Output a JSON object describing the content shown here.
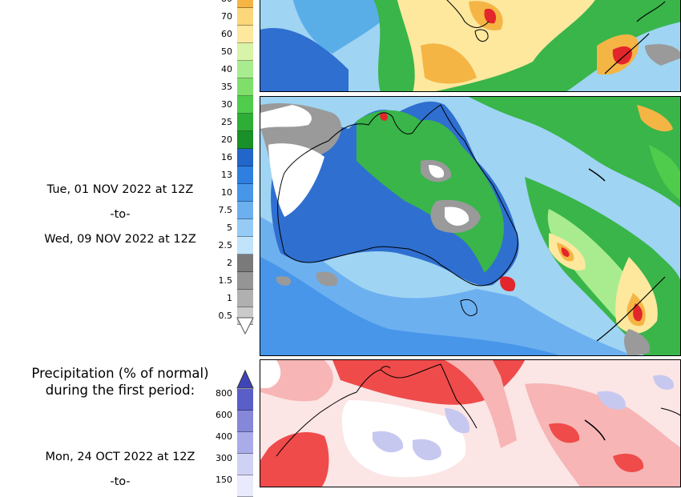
{
  "panel2": {
    "period_start": "Tue, 01 NOV 2022 at 12Z",
    "period_sep": "-to-",
    "period_end": "Wed, 09 NOV 2022 at 12Z"
  },
  "panel3": {
    "title_line1": "Precipitation (% of normal)",
    "title_line2": "during the first period:",
    "period_start": "Mon, 24 OCT 2022 at 12Z",
    "period_sep": "-to-"
  },
  "legend_top": {
    "labels": [
      "80",
      "70",
      "60",
      "50",
      "40",
      "35",
      "30",
      "25",
      "20",
      "16",
      "13",
      "10",
      "7.5",
      "5",
      "2.5",
      "2",
      "1.5",
      "1",
      "0.5"
    ],
    "colors": [
      "#f5b544",
      "#fbd77a",
      "#fde89e",
      "#d8f4a8",
      "#a8ec8f",
      "#7ee06b",
      "#4fcc4c",
      "#2eae36",
      "#1a9028",
      "#2166c8",
      "#2e7fe0",
      "#4796ea",
      "#6cb0f0",
      "#96cbf5",
      "#c2e4fa",
      "#7a7a7a",
      "#959595",
      "#b0b0b0",
      "#cacaca"
    ]
  },
  "legend_bottom": {
    "labels": [
      "800",
      "600",
      "400",
      "300",
      "150"
    ],
    "colors": [
      "#5a5ec8",
      "#8588d8",
      "#aaacea",
      "#cfd1f5",
      "#e9eafb"
    ]
  },
  "colors": {
    "ocean_blue": "#9fd4f3",
    "deep_blue": "#2f6fd0",
    "green": "#39b54a",
    "yellow": "#fde89e",
    "orange": "#f5b544",
    "red": "#e3262b",
    "grey": "#9a9a9a",
    "anomaly_red": "#ef4b4b",
    "anomaly_pink": "#f7b5b5",
    "anomaly_blue": "#c6c8f0"
  }
}
